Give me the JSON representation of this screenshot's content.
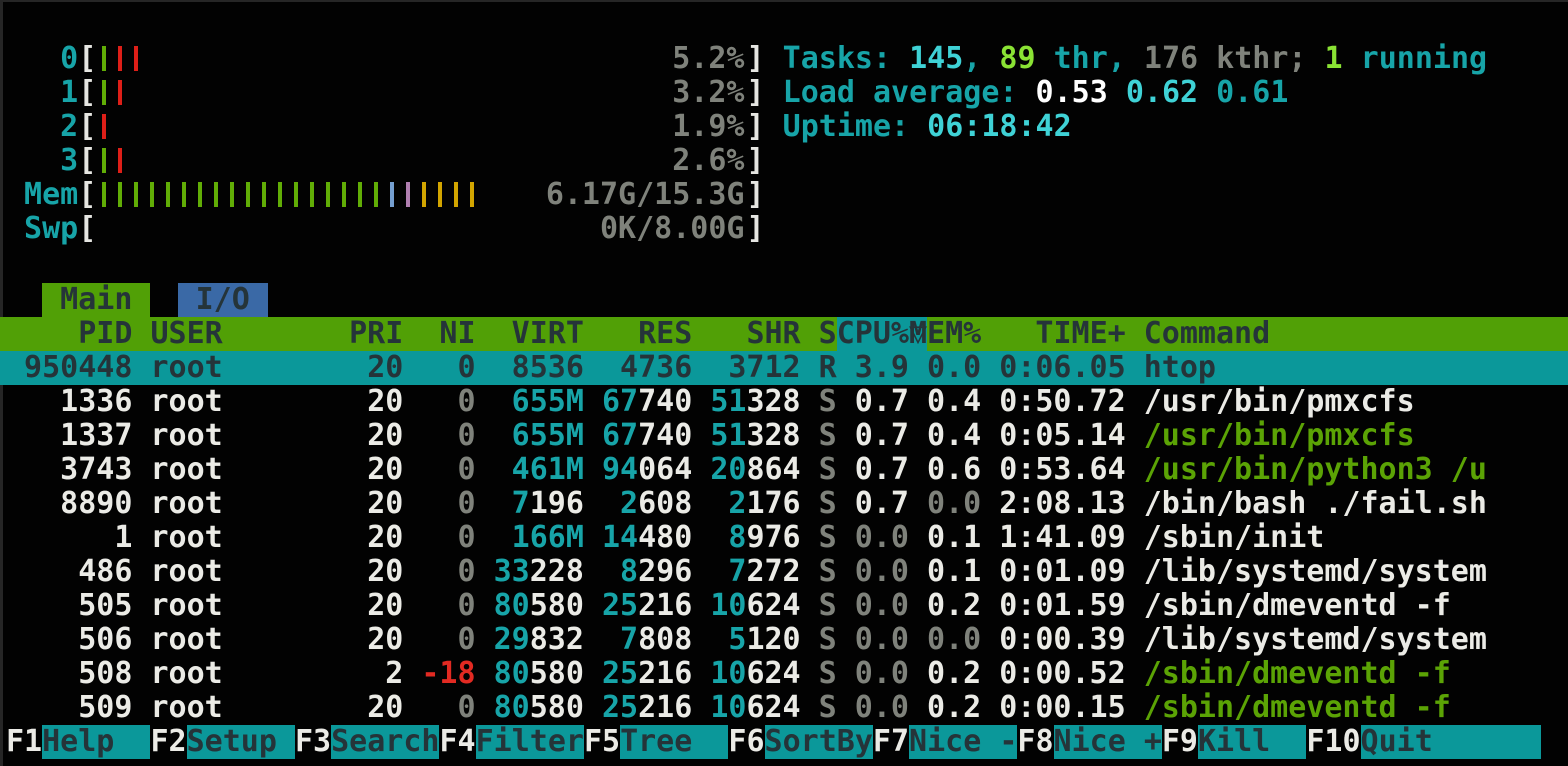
{
  "colors": {
    "background": "#020202",
    "accent_green_bg": "#51a006",
    "accent_teal_bg": "#0b989a",
    "accent_blue_bg": "#3a69a6",
    "text_white": "#ebebe6",
    "text_bright_cyan": "#3fd2d6",
    "text_cyan": "#17a4a8",
    "text_gray": "#7f827b",
    "text_bright_green": "#8ae234",
    "text_green": "#5ba305",
    "text_red": "#e22a22",
    "text_dark": "#253439"
  },
  "tick_colors": {
    "green": "#61ad06",
    "red": "#de1f18",
    "blue": "#759fd0",
    "magenta": "#b07fb0",
    "yellow": "#d2a500"
  },
  "meters": {
    "cpus": [
      {
        "label": "0",
        "value": "5.2%",
        "ticks": [
          "green",
          "red",
          "red"
        ]
      },
      {
        "label": "1",
        "value": "3.2%",
        "ticks": [
          "green",
          "red"
        ]
      },
      {
        "label": "2",
        "value": "1.9%",
        "ticks": [
          "red"
        ]
      },
      {
        "label": "3",
        "value": "2.6%",
        "ticks": [
          "green",
          "red"
        ]
      }
    ],
    "mem": {
      "label": "Mem",
      "value": "6.17G/15.3G",
      "ticks": [
        "green",
        "green",
        "green",
        "green",
        "green",
        "green",
        "green",
        "green",
        "green",
        "green",
        "green",
        "green",
        "green",
        "green",
        "green",
        "green",
        "green",
        "green",
        "blue",
        "magenta",
        "yellow",
        "yellow",
        "yellow",
        "yellow"
      ]
    },
    "swp": {
      "label": "Swp",
      "value": "0K/8.00G",
      "ticks": []
    }
  },
  "summary": [
    {
      "name": "tasks",
      "segments": [
        [
          "Tasks: ",
          "c"
        ],
        [
          "145",
          "bc"
        ],
        [
          ", ",
          "c"
        ],
        [
          "89",
          "bg"
        ],
        [
          " thr",
          "c"
        ],
        [
          ", ",
          "c"
        ],
        [
          "176 kthr; ",
          "g"
        ],
        [
          "1",
          "bg"
        ],
        [
          " running",
          "c"
        ]
      ]
    },
    {
      "name": "load-average",
      "segments": [
        [
          "Load average: ",
          "c"
        ],
        [
          "0.53 ",
          "bw"
        ],
        [
          "0.62 ",
          "bc"
        ],
        [
          "0.61",
          "c"
        ]
      ]
    },
    {
      "name": "uptime",
      "segments": [
        [
          "Uptime: ",
          "c"
        ],
        [
          "06:18:42",
          "bc"
        ]
      ]
    }
  ],
  "tabs": [
    {
      "label": "Main",
      "active": true
    },
    {
      "label": "I/O",
      "active": false
    }
  ],
  "table": {
    "columns": [
      "pid",
      "user",
      "pri",
      "ni",
      "virt",
      "res",
      "shr",
      "s",
      "cpu",
      "mem",
      "time",
      "cmd"
    ],
    "header": {
      "pid": "PID",
      "user": "USER",
      "pri": "PRI",
      "ni": "NI",
      "virt": "VIRT",
      "res": "RES",
      "shr": "SHR",
      "s": "S",
      "cpu": "CPU%",
      "mem": "MEM%",
      "time": "TIME+",
      "cmd": "Command"
    },
    "sort_column": "cpu",
    "sort_arrow": "▽",
    "rows": [
      {
        "selected": true,
        "cells": {
          "pid": [
            [
              "950448",
              "d"
            ]
          ],
          "user": [
            [
              "root",
              "d"
            ]
          ],
          "pri": [
            [
              "20",
              "d"
            ]
          ],
          "ni": [
            [
              "0",
              "d"
            ]
          ],
          "virt": [
            [
              "8536",
              "d"
            ]
          ],
          "res": [
            [
              "4736",
              "d"
            ]
          ],
          "shr": [
            [
              "3712",
              "d"
            ]
          ],
          "s": [
            [
              "R",
              "d"
            ]
          ],
          "cpu": [
            [
              "3.9",
              "d"
            ]
          ],
          "mem": [
            [
              "0.0",
              "d"
            ]
          ],
          "time": [
            [
              "0:06.05",
              "d"
            ]
          ],
          "cmd": [
            [
              "htop",
              "d"
            ]
          ]
        }
      },
      {
        "cells": {
          "pid": [
            [
              "1336",
              "w"
            ]
          ],
          "user": [
            [
              "root",
              "w"
            ]
          ],
          "pri": [
            [
              "20",
              "w"
            ]
          ],
          "ni": [
            [
              "0",
              "g"
            ]
          ],
          "virt": [
            [
              "655M",
              "c"
            ]
          ],
          "res": [
            [
              "67",
              "c"
            ],
            [
              "740",
              "w"
            ]
          ],
          "shr": [
            [
              "51",
              "c"
            ],
            [
              "328",
              "w"
            ]
          ],
          "s": [
            [
              "S",
              "g"
            ]
          ],
          "cpu": [
            [
              "0.7",
              "w"
            ]
          ],
          "mem": [
            [
              "0.4",
              "w"
            ]
          ],
          "time": [
            [
              "0:50.72",
              "w"
            ]
          ],
          "cmd": [
            [
              "/usr/bin/pmxcfs",
              "w"
            ]
          ]
        }
      },
      {
        "cells": {
          "pid": [
            [
              "1337",
              "w"
            ]
          ],
          "user": [
            [
              "root",
              "w"
            ]
          ],
          "pri": [
            [
              "20",
              "w"
            ]
          ],
          "ni": [
            [
              "0",
              "g"
            ]
          ],
          "virt": [
            [
              "655M",
              "c"
            ]
          ],
          "res": [
            [
              "67",
              "c"
            ],
            [
              "740",
              "w"
            ]
          ],
          "shr": [
            [
              "51",
              "c"
            ],
            [
              "328",
              "w"
            ]
          ],
          "s": [
            [
              "S",
              "g"
            ]
          ],
          "cpu": [
            [
              "0.7",
              "w"
            ]
          ],
          "mem": [
            [
              "0.4",
              "w"
            ]
          ],
          "time": [
            [
              "0:05.14",
              "w"
            ]
          ],
          "cmd": [
            [
              "/usr/bin/pmxcfs",
              "grn"
            ]
          ]
        }
      },
      {
        "cells": {
          "pid": [
            [
              "3743",
              "w"
            ]
          ],
          "user": [
            [
              "root",
              "w"
            ]
          ],
          "pri": [
            [
              "20",
              "w"
            ]
          ],
          "ni": [
            [
              "0",
              "g"
            ]
          ],
          "virt": [
            [
              "461M",
              "c"
            ]
          ],
          "res": [
            [
              "94",
              "c"
            ],
            [
              "064",
              "w"
            ]
          ],
          "shr": [
            [
              "20",
              "c"
            ],
            [
              "864",
              "w"
            ]
          ],
          "s": [
            [
              "S",
              "g"
            ]
          ],
          "cpu": [
            [
              "0.7",
              "w"
            ]
          ],
          "mem": [
            [
              "0.6",
              "w"
            ]
          ],
          "time": [
            [
              "0:53.64",
              "w"
            ]
          ],
          "cmd": [
            [
              "/usr/bin/python3 /u",
              "grn"
            ]
          ]
        }
      },
      {
        "cells": {
          "pid": [
            [
              "8890",
              "w"
            ]
          ],
          "user": [
            [
              "root",
              "w"
            ]
          ],
          "pri": [
            [
              "20",
              "w"
            ]
          ],
          "ni": [
            [
              "0",
              "g"
            ]
          ],
          "virt": [
            [
              "7",
              "c"
            ],
            [
              "196",
              "w"
            ]
          ],
          "res": [
            [
              "2",
              "c"
            ],
            [
              "608",
              "w"
            ]
          ],
          "shr": [
            [
              "2",
              "c"
            ],
            [
              "176",
              "w"
            ]
          ],
          "s": [
            [
              "S",
              "g"
            ]
          ],
          "cpu": [
            [
              "0.7",
              "w"
            ]
          ],
          "mem": [
            [
              "0.0",
              "g"
            ]
          ],
          "time": [
            [
              "2:08.13",
              "w"
            ]
          ],
          "cmd": [
            [
              "/bin/bash ./fail.sh",
              "w"
            ]
          ]
        }
      },
      {
        "cells": {
          "pid": [
            [
              "1",
              "w"
            ]
          ],
          "user": [
            [
              "root",
              "w"
            ]
          ],
          "pri": [
            [
              "20",
              "w"
            ]
          ],
          "ni": [
            [
              "0",
              "g"
            ]
          ],
          "virt": [
            [
              "166M",
              "c"
            ]
          ],
          "res": [
            [
              "14",
              "c"
            ],
            [
              "480",
              "w"
            ]
          ],
          "shr": [
            [
              "8",
              "c"
            ],
            [
              "976",
              "w"
            ]
          ],
          "s": [
            [
              "S",
              "g"
            ]
          ],
          "cpu": [
            [
              "0.0",
              "g"
            ]
          ],
          "mem": [
            [
              "0.1",
              "w"
            ]
          ],
          "time": [
            [
              "1:41.09",
              "w"
            ]
          ],
          "cmd": [
            [
              "/sbin/init",
              "w"
            ]
          ]
        }
      },
      {
        "cells": {
          "pid": [
            [
              "486",
              "w"
            ]
          ],
          "user": [
            [
              "root",
              "w"
            ]
          ],
          "pri": [
            [
              "20",
              "w"
            ]
          ],
          "ni": [
            [
              "0",
              "g"
            ]
          ],
          "virt": [
            [
              "33",
              "c"
            ],
            [
              "228",
              "w"
            ]
          ],
          "res": [
            [
              "8",
              "c"
            ],
            [
              "296",
              "w"
            ]
          ],
          "shr": [
            [
              "7",
              "c"
            ],
            [
              "272",
              "w"
            ]
          ],
          "s": [
            [
              "S",
              "g"
            ]
          ],
          "cpu": [
            [
              "0.0",
              "g"
            ]
          ],
          "mem": [
            [
              "0.1",
              "w"
            ]
          ],
          "time": [
            [
              "0:01.09",
              "w"
            ]
          ],
          "cmd": [
            [
              "/lib/systemd/system",
              "w"
            ]
          ]
        }
      },
      {
        "cells": {
          "pid": [
            [
              "505",
              "w"
            ]
          ],
          "user": [
            [
              "root",
              "w"
            ]
          ],
          "pri": [
            [
              "20",
              "w"
            ]
          ],
          "ni": [
            [
              "0",
              "g"
            ]
          ],
          "virt": [
            [
              "80",
              "c"
            ],
            [
              "580",
              "w"
            ]
          ],
          "res": [
            [
              "25",
              "c"
            ],
            [
              "216",
              "w"
            ]
          ],
          "shr": [
            [
              "10",
              "c"
            ],
            [
              "624",
              "w"
            ]
          ],
          "s": [
            [
              "S",
              "g"
            ]
          ],
          "cpu": [
            [
              "0.0",
              "g"
            ]
          ],
          "mem": [
            [
              "0.2",
              "w"
            ]
          ],
          "time": [
            [
              "0:01.59",
              "w"
            ]
          ],
          "cmd": [
            [
              "/sbin/dmeventd -f",
              "w"
            ]
          ]
        }
      },
      {
        "cells": {
          "pid": [
            [
              "506",
              "w"
            ]
          ],
          "user": [
            [
              "root",
              "w"
            ]
          ],
          "pri": [
            [
              "20",
              "w"
            ]
          ],
          "ni": [
            [
              "0",
              "g"
            ]
          ],
          "virt": [
            [
              "29",
              "c"
            ],
            [
              "832",
              "w"
            ]
          ],
          "res": [
            [
              "7",
              "c"
            ],
            [
              "808",
              "w"
            ]
          ],
          "shr": [
            [
              "5",
              "c"
            ],
            [
              "120",
              "w"
            ]
          ],
          "s": [
            [
              "S",
              "g"
            ]
          ],
          "cpu": [
            [
              "0.0",
              "g"
            ]
          ],
          "mem": [
            [
              "0.0",
              "g"
            ]
          ],
          "time": [
            [
              "0:00.39",
              "w"
            ]
          ],
          "cmd": [
            [
              "/lib/systemd/system",
              "w"
            ]
          ]
        }
      },
      {
        "cells": {
          "pid": [
            [
              "508",
              "w"
            ]
          ],
          "user": [
            [
              "root",
              "w"
            ]
          ],
          "pri": [
            [
              "2",
              "w"
            ]
          ],
          "ni": [
            [
              "-18",
              "r"
            ]
          ],
          "virt": [
            [
              "80",
              "c"
            ],
            [
              "580",
              "w"
            ]
          ],
          "res": [
            [
              "25",
              "c"
            ],
            [
              "216",
              "w"
            ]
          ],
          "shr": [
            [
              "10",
              "c"
            ],
            [
              "624",
              "w"
            ]
          ],
          "s": [
            [
              "S",
              "g"
            ]
          ],
          "cpu": [
            [
              "0.0",
              "g"
            ]
          ],
          "mem": [
            [
              "0.2",
              "w"
            ]
          ],
          "time": [
            [
              "0:00.52",
              "w"
            ]
          ],
          "cmd": [
            [
              "/sbin/dmeventd -f",
              "grn"
            ]
          ]
        }
      },
      {
        "cells": {
          "pid": [
            [
              "509",
              "w"
            ]
          ],
          "user": [
            [
              "root",
              "w"
            ]
          ],
          "pri": [
            [
              "20",
              "w"
            ]
          ],
          "ni": [
            [
              "0",
              "g"
            ]
          ],
          "virt": [
            [
              "80",
              "c"
            ],
            [
              "580",
              "w"
            ]
          ],
          "res": [
            [
              "25",
              "c"
            ],
            [
              "216",
              "w"
            ]
          ],
          "shr": [
            [
              "10",
              "c"
            ],
            [
              "624",
              "w"
            ]
          ],
          "s": [
            [
              "S",
              "g"
            ]
          ],
          "cpu": [
            [
              "0.0",
              "g"
            ]
          ],
          "mem": [
            [
              "0.2",
              "w"
            ]
          ],
          "time": [
            [
              "0:00.15",
              "w"
            ]
          ],
          "cmd": [
            [
              "/sbin/dmeventd -f",
              "grn"
            ]
          ]
        }
      }
    ]
  },
  "fnbar": [
    {
      "key": "F1",
      "label": "Help"
    },
    {
      "key": "F2",
      "label": "Setup"
    },
    {
      "key": "F3",
      "label": "Search"
    },
    {
      "key": "F4",
      "label": "Filter"
    },
    {
      "key": "F5",
      "label": "Tree"
    },
    {
      "key": "F6",
      "label": "SortBy"
    },
    {
      "key": "F7",
      "label": "Nice -"
    },
    {
      "key": "F8",
      "label": "Nice +"
    },
    {
      "key": "F9",
      "label": "Kill"
    },
    {
      "key": "F10",
      "label": "Quit"
    }
  ]
}
